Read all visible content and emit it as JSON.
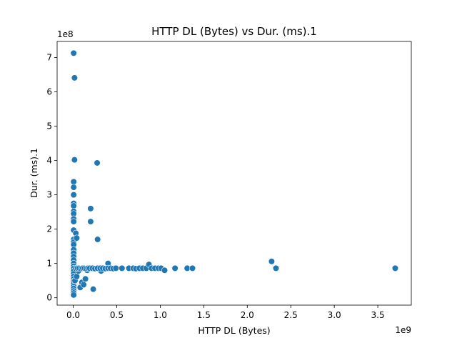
{
  "chart_data": {
    "type": "scatter",
    "title": "HTTP DL (Bytes) vs Dur. (ms).1",
    "xlabel": "HTTP DL (Bytes)",
    "ylabel": "Dur. (ms).1",
    "x_offset_label": "1e9",
    "y_offset_label": "1e8",
    "xlim": [
      -0.185,
      3.885
    ],
    "ylim": [
      -0.215,
      7.47
    ],
    "x_ticks": [
      0.0,
      0.5,
      1.0,
      1.5,
      2.0,
      2.5,
      3.0,
      3.5
    ],
    "x_tick_labels": [
      "0.0",
      "0.5",
      "1.0",
      "1.5",
      "2.0",
      "2.5",
      "3.0",
      "3.5"
    ],
    "y_ticks": [
      0,
      1,
      2,
      3,
      4,
      5,
      6,
      7
    ],
    "y_tick_labels": [
      "0",
      "1",
      "2",
      "3",
      "4",
      "5",
      "6",
      "7"
    ],
    "grid": false,
    "legend": "none",
    "color": "#1f77b4",
    "points": [
      [
        0.005,
        7.13
      ],
      [
        0.015,
        6.41
      ],
      [
        0.015,
        4.02
      ],
      [
        0.275,
        3.93
      ],
      [
        0.005,
        3.38
      ],
      [
        0.005,
        3.22
      ],
      [
        0.005,
        3.0
      ],
      [
        0.005,
        2.75
      ],
      [
        0.005,
        2.68
      ],
      [
        0.005,
        2.52
      ],
      [
        0.005,
        2.45
      ],
      [
        0.005,
        2.3
      ],
      [
        0.005,
        2.22
      ],
      [
        0.2,
        2.6
      ],
      [
        0.2,
        2.22
      ],
      [
        0.005,
        1.97
      ],
      [
        0.03,
        1.88
      ],
      [
        0.005,
        1.7
      ],
      [
        0.005,
        1.62
      ],
      [
        0.005,
        1.55
      ],
      [
        0.04,
        1.74
      ],
      [
        0.28,
        1.7
      ],
      [
        0.005,
        1.4
      ],
      [
        0.005,
        1.3
      ],
      [
        0.005,
        1.2
      ],
      [
        0.005,
        1.1
      ],
      [
        0.005,
        1.0
      ],
      [
        0.005,
        0.92
      ],
      [
        0.005,
        0.85
      ],
      [
        0.005,
        0.78
      ],
      [
        0.005,
        0.7
      ],
      [
        0.005,
        0.62
      ],
      [
        0.005,
        0.55
      ],
      [
        0.005,
        0.48
      ],
      [
        0.005,
        0.4
      ],
      [
        0.005,
        0.33
      ],
      [
        0.005,
        0.27
      ],
      [
        0.005,
        0.2
      ],
      [
        0.005,
        0.14
      ],
      [
        0.005,
        0.08
      ],
      [
        0.02,
        0.5
      ],
      [
        0.04,
        0.62
      ],
      [
        0.06,
        0.78
      ],
      [
        0.08,
        0.3
      ],
      [
        0.1,
        0.45
      ],
      [
        0.12,
        0.38
      ],
      [
        0.14,
        0.55
      ],
      [
        0.16,
        0.8
      ],
      [
        0.23,
        0.25
      ],
      [
        0.32,
        0.78
      ],
      [
        0.4,
        1.0
      ],
      [
        0.03,
        0.85
      ],
      [
        0.05,
        0.86
      ],
      [
        0.07,
        0.86
      ],
      [
        0.09,
        0.85
      ],
      [
        0.11,
        0.86
      ],
      [
        0.13,
        0.86
      ],
      [
        0.15,
        0.85
      ],
      [
        0.17,
        0.86
      ],
      [
        0.19,
        0.86
      ],
      [
        0.22,
        0.86
      ],
      [
        0.25,
        0.85
      ],
      [
        0.28,
        0.86
      ],
      [
        0.31,
        0.86
      ],
      [
        0.34,
        0.86
      ],
      [
        0.37,
        0.85
      ],
      [
        0.4,
        0.86
      ],
      [
        0.43,
        0.86
      ],
      [
        0.46,
        0.85
      ],
      [
        0.49,
        0.86
      ],
      [
        0.56,
        0.86
      ],
      [
        0.64,
        0.86
      ],
      [
        0.69,
        0.86
      ],
      [
        0.72,
        0.85
      ],
      [
        0.76,
        0.86
      ],
      [
        0.8,
        0.86
      ],
      [
        0.84,
        0.86
      ],
      [
        0.87,
        0.97
      ],
      [
        0.9,
        0.86
      ],
      [
        0.94,
        0.86
      ],
      [
        0.98,
        0.86
      ],
      [
        1.01,
        0.86
      ],
      [
        1.05,
        0.8
      ],
      [
        1.17,
        0.86
      ],
      [
        1.31,
        0.86
      ],
      [
        1.37,
        0.86
      ],
      [
        2.28,
        1.06
      ],
      [
        2.33,
        0.86
      ],
      [
        3.7,
        0.86
      ]
    ]
  }
}
